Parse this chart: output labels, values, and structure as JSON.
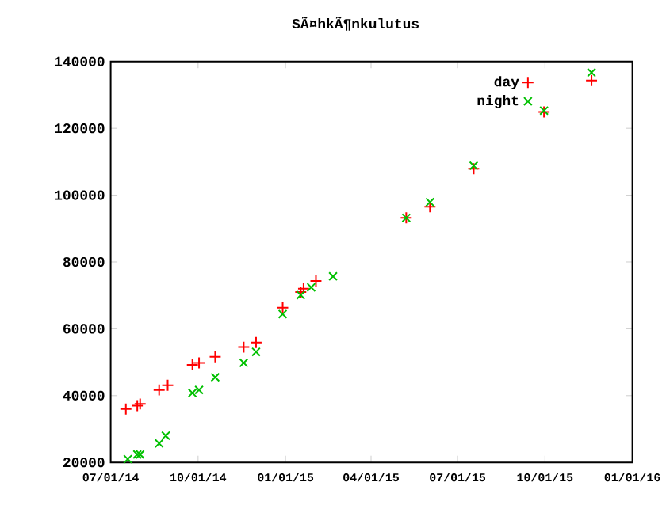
{
  "chart_data": {
    "type": "scatter",
    "title": "SÃ¤hkÃ¶nkulutus",
    "x": [
      "2014-07-17",
      "2014-07-29",
      "2014-08-01",
      "2014-08-21",
      "2014-08-30",
      "2014-09-25",
      "2014-10-02",
      "2014-10-19",
      "2014-11-18",
      "2014-12-01",
      "2014-12-29",
      "2015-01-17",
      "2015-01-20",
      "2015-02-02",
      "2015-05-08",
      "2015-06-02",
      "2015-07-18",
      "2015-09-30",
      "2015-11-19"
    ],
    "series": [
      {
        "name": "day",
        "color": "#ff0000",
        "marker": "plus",
        "values": [
          36000,
          37000,
          37500,
          41700,
          43100,
          49200,
          49800,
          51600,
          54500,
          55900,
          66300,
          71000,
          72000,
          74300,
          93200,
          96500,
          107900,
          124900,
          134300
        ]
      },
      {
        "name": "night",
        "color": "#00c000",
        "marker": "cross",
        "x": [
          "2014-07-19",
          "2014-07-29",
          "2014-08-01",
          "2014-08-21",
          "2014-08-28",
          "2014-09-25",
          "2014-10-02",
          "2014-10-19",
          "2014-11-18",
          "2014-12-01",
          "2014-12-29",
          "2015-01-17",
          "2015-01-28",
          "2015-02-20",
          "2015-05-08",
          "2015-06-02",
          "2015-07-18",
          "2015-09-30",
          "2015-11-19"
        ],
        "values": [
          21000,
          22400,
          22400,
          25700,
          28000,
          40800,
          41700,
          45500,
          49800,
          53100,
          64400,
          70100,
          72400,
          75700,
          93200,
          97900,
          108800,
          125300,
          136700
        ]
      }
    ],
    "xlim": [
      "2014-07-01",
      "2016-01-01"
    ],
    "xticks": [
      {
        "value": "2014-07-01",
        "label": "07/01/14"
      },
      {
        "value": "2014-10-01",
        "label": "10/01/14"
      },
      {
        "value": "2015-01-01",
        "label": "01/01/15"
      },
      {
        "value": "2015-04-01",
        "label": "04/01/15"
      },
      {
        "value": "2015-07-01",
        "label": "07/01/15"
      },
      {
        "value": "2015-10-01",
        "label": "10/01/15"
      },
      {
        "value": "2016-01-01",
        "label": "01/01/16"
      }
    ],
    "ylim": [
      20000,
      140000
    ],
    "yticks": [
      20000,
      40000,
      60000,
      80000,
      100000,
      120000,
      140000
    ],
    "legend": "top right"
  }
}
